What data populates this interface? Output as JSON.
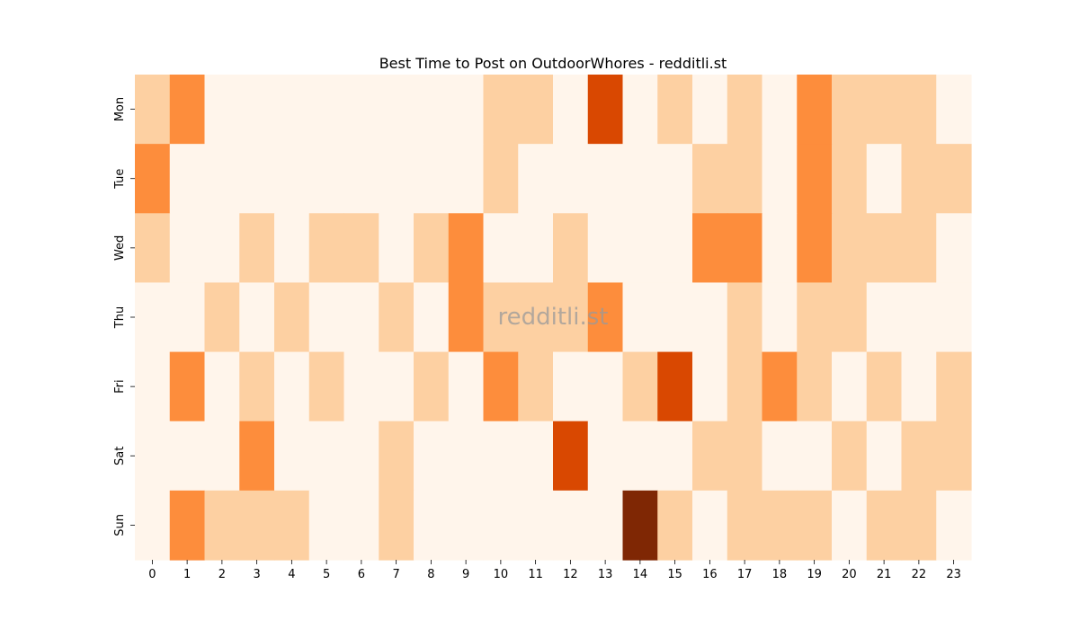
{
  "chart_data": {
    "type": "heatmap",
    "title": "Best Time to Post on OutdoorWhores - redditli.st",
    "watermark": "redditli.st",
    "x_categories": [
      "0",
      "1",
      "2",
      "3",
      "4",
      "5",
      "6",
      "7",
      "8",
      "9",
      "10",
      "11",
      "12",
      "13",
      "14",
      "15",
      "16",
      "17",
      "18",
      "19",
      "20",
      "21",
      "22",
      "23"
    ],
    "y_categories": [
      "Mon",
      "Tue",
      "Wed",
      "Thu",
      "Fri",
      "Sat",
      "Sun"
    ],
    "values": [
      [
        1,
        2,
        0,
        0,
        0,
        0,
        0,
        0,
        0,
        0,
        1,
        1,
        0,
        3,
        0,
        1,
        0,
        1,
        0,
        2,
        1,
        1,
        1,
        0
      ],
      [
        2,
        0,
        0,
        0,
        0,
        0,
        0,
        0,
        0,
        0,
        1,
        0,
        0,
        0,
        0,
        0,
        1,
        1,
        0,
        2,
        1,
        0,
        1,
        1
      ],
      [
        1,
        0,
        0,
        1,
        0,
        1,
        1,
        0,
        1,
        2,
        0,
        0,
        1,
        0,
        0,
        0,
        2,
        2,
        0,
        2,
        1,
        1,
        1,
        0
      ],
      [
        0,
        0,
        1,
        0,
        1,
        0,
        0,
        1,
        0,
        2,
        1,
        1,
        1,
        2,
        0,
        0,
        0,
        1,
        0,
        1,
        1,
        0,
        0,
        0
      ],
      [
        0,
        2,
        0,
        1,
        0,
        1,
        0,
        0,
        1,
        0,
        2,
        1,
        0,
        0,
        1,
        3,
        0,
        1,
        2,
        1,
        0,
        1,
        0,
        1
      ],
      [
        0,
        0,
        0,
        2,
        0,
        0,
        0,
        1,
        0,
        0,
        0,
        0,
        3,
        0,
        0,
        0,
        1,
        1,
        0,
        0,
        1,
        0,
        1,
        1
      ],
      [
        0,
        2,
        1,
        1,
        1,
        0,
        0,
        1,
        0,
        0,
        0,
        0,
        0,
        0,
        4,
        1,
        0,
        1,
        1,
        1,
        0,
        1,
        1,
        0
      ]
    ],
    "color_scale": {
      "0": "#fff5eb",
      "1": "#fdd0a2",
      "2": "#fd8d3c",
      "3": "#d94801",
      "4": "#7f2704"
    },
    "colorbar": false
  }
}
